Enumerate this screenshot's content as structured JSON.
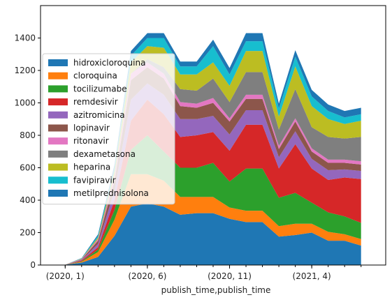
{
  "chart_data": {
    "type": "area",
    "stacked": true,
    "xlabel": "publish_time,publish_time",
    "ylabel": "",
    "ylim": [
      0,
      1600
    ],
    "yticks": [
      0,
      200,
      400,
      600,
      800,
      1000,
      1200,
      1400
    ],
    "ytick_labels": [
      "0",
      "200",
      "400",
      "600",
      "800",
      "1000",
      "1200",
      "1400"
    ],
    "xticks": [
      {
        "x": 0,
        "label": "(2020, 1)"
      },
      {
        "x": 5,
        "label": "(2020, 6)"
      },
      {
        "x": 10,
        "label": "(2020, 11)"
      },
      {
        "x": 15,
        "label": "(2021, 4)"
      }
    ],
    "minor_xticks": [
      0,
      1,
      2,
      3,
      4,
      5,
      6,
      7,
      8,
      9,
      10,
      11,
      12,
      13,
      14,
      15,
      16,
      17,
      18
    ],
    "xlim": [
      -1.5,
      19.5
    ],
    "grid": false,
    "legend_position": "upper-left",
    "x": [
      0,
      1,
      2,
      3,
      4,
      5,
      6,
      7,
      8,
      9,
      10,
      11,
      12,
      13,
      14,
      15,
      16,
      17,
      18
    ],
    "series": [
      {
        "name": "hidroxicloroquina",
        "color": "#1f77b4",
        "values": [
          2,
          15,
          50,
          180,
          360,
          380,
          360,
          310,
          320,
          320,
          285,
          265,
          265,
          175,
          185,
          200,
          150,
          150,
          120
        ]
      },
      {
        "name": "cloroquina",
        "color": "#ff7f0e",
        "values": [
          0,
          5,
          30,
          100,
          200,
          180,
          160,
          110,
          100,
          100,
          70,
          70,
          70,
          65,
          70,
          55,
          55,
          40,
          40
        ]
      },
      {
        "name": "tocilizumabe",
        "color": "#2ca02c",
        "values": [
          0,
          3,
          15,
          60,
          150,
          240,
          180,
          180,
          180,
          210,
          160,
          260,
          260,
          175,
          190,
          130,
          120,
          110,
          100
        ]
      },
      {
        "name": "remdesivir",
        "color": "#d62728",
        "values": [
          0,
          5,
          15,
          60,
          180,
          220,
          230,
          190,
          200,
          190,
          190,
          270,
          270,
          180,
          300,
          210,
          200,
          240,
          270
        ]
      },
      {
        "name": "azitromicina",
        "color": "#9467bd",
        "values": [
          0,
          4,
          20,
          60,
          130,
          100,
          120,
          110,
          100,
          100,
          100,
          90,
          90,
          70,
          80,
          60,
          60,
          50,
          50
        ]
      },
      {
        "name": "lopinavir",
        "color": "#8c564b",
        "values": [
          0,
          3,
          20,
          60,
          120,
          100,
          100,
          80,
          70,
          80,
          80,
          70,
          70,
          50,
          60,
          45,
          45,
          40,
          40
        ]
      },
      {
        "name": "ritonavir",
        "color": "#e377c2",
        "values": [
          0,
          2,
          10,
          30,
          40,
          30,
          30,
          25,
          25,
          30,
          20,
          25,
          25,
          20,
          20,
          20,
          20,
          20,
          20
        ]
      },
      {
        "name": "dexametasona",
        "color": "#7f7f7f",
        "values": [
          0,
          0,
          0,
          0,
          0,
          20,
          40,
          80,
          80,
          120,
          100,
          140,
          140,
          100,
          180,
          130,
          140,
          130,
          150
        ]
      },
      {
        "name": "heparina",
        "color": "#bcbd22",
        "values": [
          0,
          2,
          10,
          30,
          70,
          80,
          120,
          90,
          100,
          100,
          100,
          130,
          130,
          80,
          140,
          130,
          110,
          90,
          100
        ]
      },
      {
        "name": "favipiravir",
        "color": "#17becf",
        "values": [
          0,
          2,
          10,
          20,
          40,
          50,
          60,
          50,
          50,
          100,
          70,
          60,
          60,
          50,
          60,
          60,
          50,
          40,
          40
        ]
      },
      {
        "name": "metilprednisolona",
        "color": "#1f77b4",
        "values": [
          0,
          2,
          10,
          20,
          30,
          30,
          30,
          30,
          30,
          40,
          40,
          50,
          50,
          30,
          40,
          40,
          40,
          40,
          40
        ]
      }
    ]
  }
}
